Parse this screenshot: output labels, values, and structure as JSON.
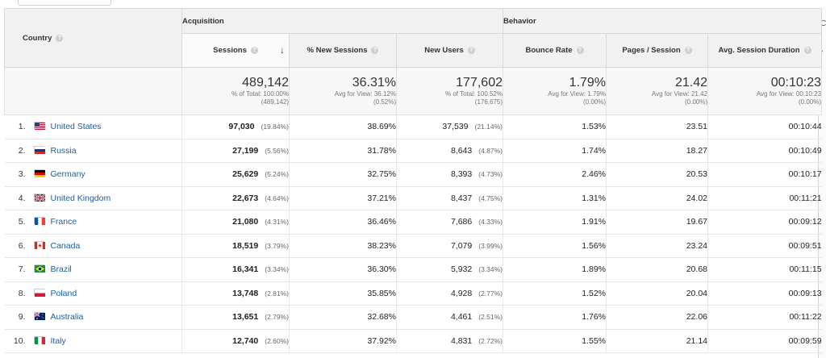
{
  "header": {
    "country_label": "Country",
    "groups": [
      "Acquisition",
      "Behavior"
    ],
    "columns": [
      "Sessions",
      "% New Sessions",
      "New Users",
      "Bounce Rate",
      "Pages / Session",
      "Avg. Session Duration"
    ],
    "help_glyph": "?",
    "sort_glyph": "↓"
  },
  "totals": [
    {
      "value": "489,142",
      "line1": "% of Total: 100.00%",
      "line2": "(489,142)"
    },
    {
      "value": "36.31%",
      "line1": "Avg for View: 36.12%",
      "line2": "(0.52%)"
    },
    {
      "value": "177,602",
      "line1": "% of Total: 100.52%",
      "line2": "(176,675)"
    },
    {
      "value": "1.79%",
      "line1": "Avg for View: 1.79%",
      "line2": "(0.00%)"
    },
    {
      "value": "21.42",
      "line1": "Avg for View: 21.42",
      "line2": "(0.00%)"
    },
    {
      "value": "00:10:23",
      "line1": "Avg for View: 00:10:23",
      "line2": "(0.00%)"
    }
  ],
  "rows": [
    {
      "rank": "1.",
      "country": "United States",
      "flag": "us",
      "sessions": "97,030",
      "sessions_pct": "(19.84%)",
      "new_sessions": "38.69%",
      "new_users": "37,539",
      "new_users_pct": "(21.14%)",
      "bounce": "1.53%",
      "pages": "23.51",
      "duration": "00:10:44"
    },
    {
      "rank": "2.",
      "country": "Russia",
      "flag": "ru",
      "sessions": "27,199",
      "sessions_pct": "(5.56%)",
      "new_sessions": "31.78%",
      "new_users": "8,643",
      "new_users_pct": "(4.87%)",
      "bounce": "1.74%",
      "pages": "18.27",
      "duration": "00:10:49"
    },
    {
      "rank": "3.",
      "country": "Germany",
      "flag": "de",
      "sessions": "25,629",
      "sessions_pct": "(5.24%)",
      "new_sessions": "32.75%",
      "new_users": "8,393",
      "new_users_pct": "(4.73%)",
      "bounce": "2.46%",
      "pages": "20.53",
      "duration": "00:10:17"
    },
    {
      "rank": "4.",
      "country": "United Kingdom",
      "flag": "gb",
      "sessions": "22,673",
      "sessions_pct": "(4.64%)",
      "new_sessions": "37.21%",
      "new_users": "8,437",
      "new_users_pct": "(4.75%)",
      "bounce": "1.31%",
      "pages": "24.02",
      "duration": "00:11:21"
    },
    {
      "rank": "5.",
      "country": "France",
      "flag": "fr",
      "sessions": "21,080",
      "sessions_pct": "(4.31%)",
      "new_sessions": "36.46%",
      "new_users": "7,686",
      "new_users_pct": "(4.33%)",
      "bounce": "1.91%",
      "pages": "19.67",
      "duration": "00:09:12"
    },
    {
      "rank": "6.",
      "country": "Canada",
      "flag": "ca",
      "sessions": "18,519",
      "sessions_pct": "(3.79%)",
      "new_sessions": "38.23%",
      "new_users": "7,079",
      "new_users_pct": "(3.99%)",
      "bounce": "1.56%",
      "pages": "23.24",
      "duration": "00:09:51"
    },
    {
      "rank": "7.",
      "country": "Brazil",
      "flag": "br",
      "sessions": "16,341",
      "sessions_pct": "(3.34%)",
      "new_sessions": "36.30%",
      "new_users": "5,932",
      "new_users_pct": "(3.34%)",
      "bounce": "1.89%",
      "pages": "20.68",
      "duration": "00:11:15"
    },
    {
      "rank": "8.",
      "country": "Poland",
      "flag": "pl",
      "sessions": "13,748",
      "sessions_pct": "(2.81%)",
      "new_sessions": "35.85%",
      "new_users": "4,928",
      "new_users_pct": "(2.77%)",
      "bounce": "1.52%",
      "pages": "20.04",
      "duration": "00:09:13"
    },
    {
      "rank": "9.",
      "country": "Australia",
      "flag": "au",
      "sessions": "13,651",
      "sessions_pct": "(2.79%)",
      "new_sessions": "32.68%",
      "new_users": "4,461",
      "new_users_pct": "(2.51%)",
      "bounce": "1.76%",
      "pages": "22.06",
      "duration": "00:11:22"
    },
    {
      "rank": "10.",
      "country": "Italy",
      "flag": "it",
      "sessions": "12,740",
      "sessions_pct": "(2.60%)",
      "new_sessions": "37.92%",
      "new_users": "4,831",
      "new_users_pct": "(2.72%)",
      "bounce": "1.55%",
      "pages": "21.14",
      "duration": "00:09:59"
    }
  ],
  "scroll_glyphs": [
    "C",
    "›"
  ],
  "colors": {
    "link": "#1a5ea8",
    "header_bg": "#f1f1f1",
    "totals_bg": "#f7f7f7"
  }
}
